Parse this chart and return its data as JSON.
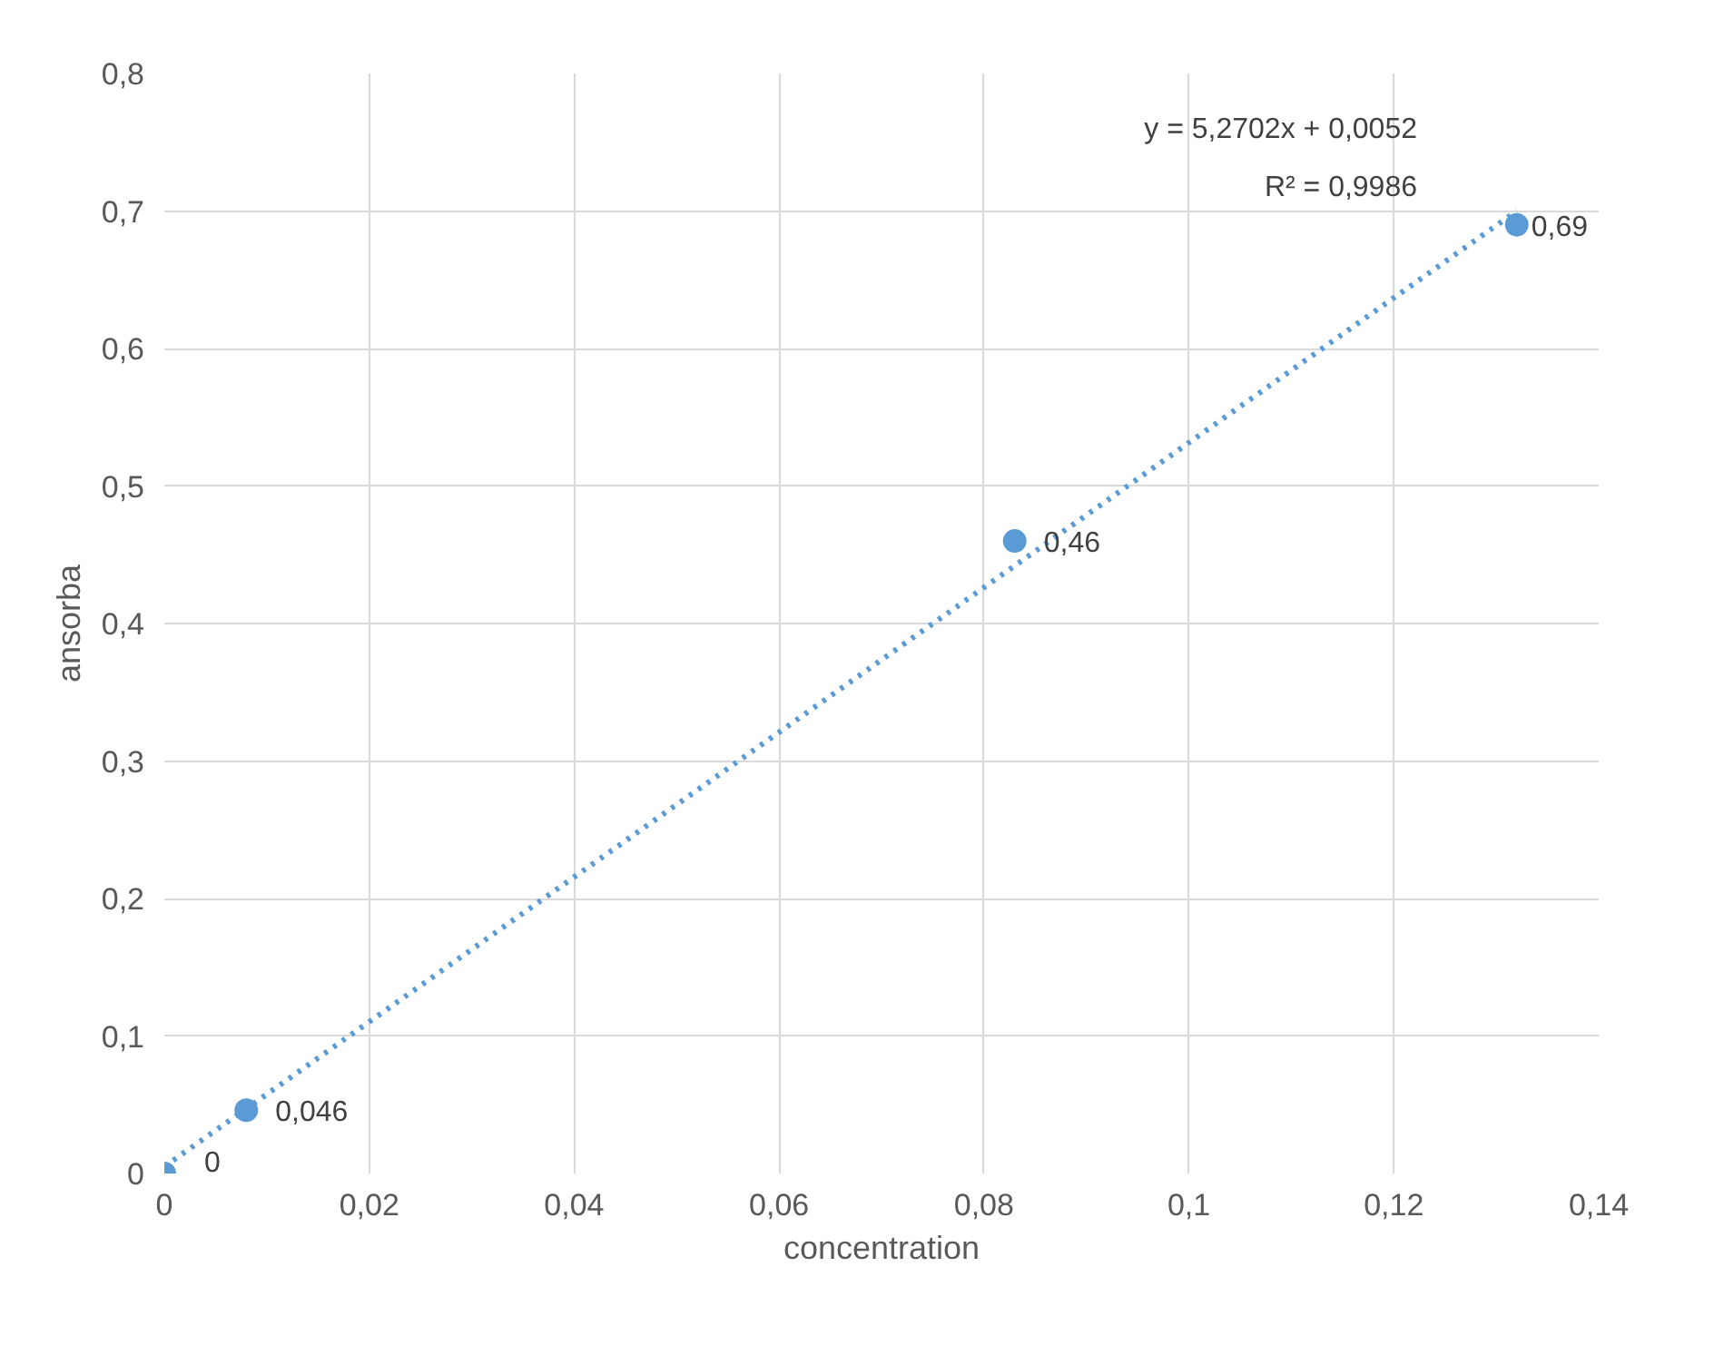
{
  "chart_data": {
    "type": "scatter",
    "xlabel": "concentration",
    "ylabel": "ansorba",
    "series": [
      {
        "color": "#5b9bd5",
        "marker": "circle",
        "x": [
          0,
          0.008,
          0.083,
          0.132
        ],
        "values": [
          0,
          0.046,
          0.46,
          0.69
        ],
        "value_labels": [
          "0",
          "0,046",
          "0,46",
          "0,69"
        ]
      },
      {
        "type": "line",
        "color": "#5b9bd5",
        "line_style": "dotted",
        "marker": "none",
        "x": [
          0,
          0.132
        ],
        "values": [
          0.005,
          0.7
        ]
      }
    ],
    "annotations": [
      "y = 5,2702x + 0,0052",
      "R² = 0,9986"
    ],
    "xlim": [
      0,
      0.14
    ],
    "ylim": [
      0,
      0.8
    ],
    "xticks": [
      0,
      {
        "value": 0.02,
        "label": "0,02"
      },
      {
        "value": 0.04,
        "label": "0,04"
      },
      {
        "value": 0.06,
        "label": "0,06"
      },
      {
        "value": 0.08,
        "label": "0,08"
      },
      {
        "value": 0.1,
        "label": "0,1"
      },
      {
        "value": 0.12,
        "label": "0,12"
      },
      {
        "value": 0.14,
        "label": "0,14"
      }
    ],
    "yticks": [
      0,
      {
        "value": 0.1,
        "label": "0,1"
      },
      {
        "value": 0.2,
        "label": "0,2"
      },
      {
        "value": 0.3,
        "label": "0,3"
      },
      {
        "value": 0.4,
        "label": "0,4"
      },
      {
        "value": 0.5,
        "label": "0,5"
      },
      {
        "value": 0.6,
        "label": "0,6"
      },
      {
        "value": 0.7,
        "label": "0,7"
      },
      {
        "value": 0.8,
        "label": "0,8"
      }
    ],
    "grid": true
  }
}
